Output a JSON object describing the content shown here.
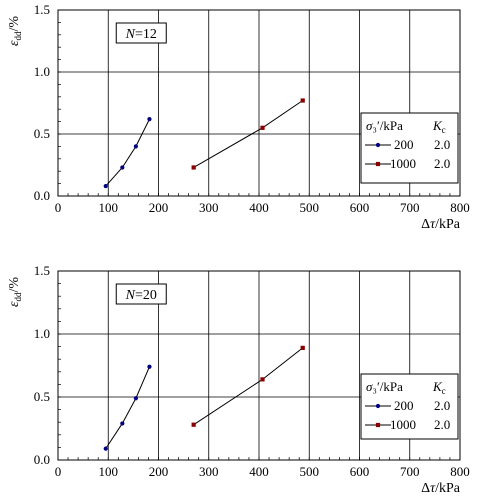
{
  "chart_data": [
    {
      "type": "line",
      "annotation": "N=12",
      "xlabel": "Δτ/kPa",
      "ylabel": "ε_dd/%",
      "xlim": [
        0,
        800
      ],
      "ylim": [
        0,
        1.5
      ],
      "x_ticks": [
        "0",
        "100",
        "200",
        "300",
        "400",
        "500",
        "600",
        "700",
        "800"
      ],
      "y_ticks": [
        "0.0",
        "0.5",
        "1.0",
        "1.5"
      ],
      "grid": true,
      "legend": {
        "placement": "right",
        "header_sigma": "σ₃′/kPa",
        "header_k": "K",
        "header_k_sub": "c",
        "entries": [
          {
            "label": "200",
            "k": "2.0",
            "marker": "dot"
          },
          {
            "label": "1000",
            "k": "2.0",
            "marker": "square"
          }
        ]
      },
      "series": [
        {
          "name": "200",
          "marker": "dot",
          "color": "#000080",
          "x": [
            95,
            128,
            155,
            182
          ],
          "y": [
            0.08,
            0.23,
            0.4,
            0.62
          ]
        },
        {
          "name": "1000",
          "marker": "square",
          "color": "#8b0000",
          "x": [
            270,
            407,
            487
          ],
          "y": [
            0.23,
            0.55,
            0.77
          ]
        }
      ]
    },
    {
      "type": "line",
      "annotation": "N=20",
      "xlabel": "Δτ/kPa",
      "ylabel": "ε_dd/%",
      "xlim": [
        0,
        800
      ],
      "ylim": [
        0,
        1.5
      ],
      "x_ticks": [
        "0",
        "100",
        "200",
        "300",
        "400",
        "500",
        "600",
        "700",
        "800"
      ],
      "y_ticks": [
        "0.0",
        "0.5",
        "1.0",
        "1.5"
      ],
      "grid": true,
      "legend": {
        "placement": "bottom-right",
        "header_sigma": "σ₃′/kPa",
        "header_k": "K",
        "header_k_sub": "c",
        "entries": [
          {
            "label": "200",
            "k": "2.0",
            "marker": "dot"
          },
          {
            "label": "1000",
            "k": "2.0",
            "marker": "square"
          }
        ]
      },
      "series": [
        {
          "name": "200",
          "marker": "dot",
          "color": "#000080",
          "x": [
            95,
            128,
            155,
            182
          ],
          "y": [
            0.09,
            0.29,
            0.49,
            0.74
          ]
        },
        {
          "name": "1000",
          "marker": "square",
          "color": "#8b0000",
          "x": [
            270,
            407,
            487
          ],
          "y": [
            0.28,
            0.64,
            0.89
          ]
        }
      ]
    }
  ]
}
